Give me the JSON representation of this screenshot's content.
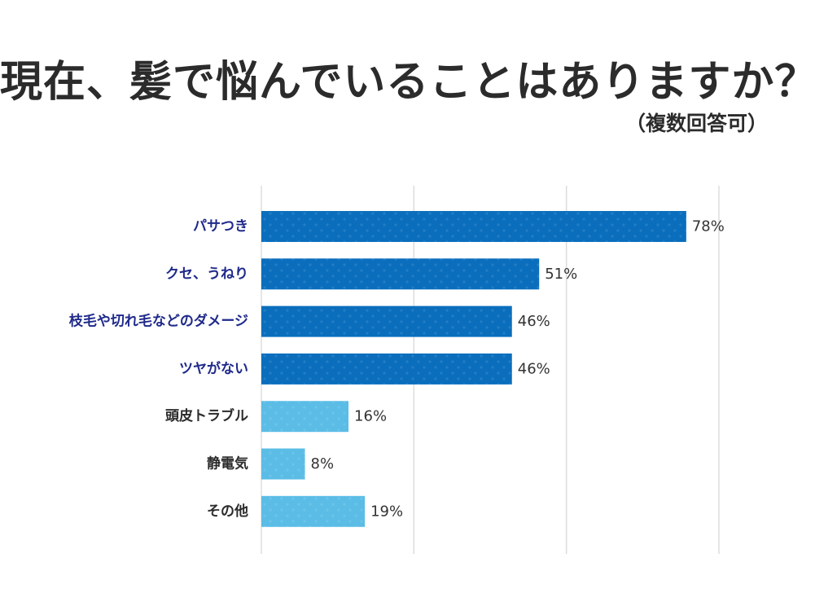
{
  "title": "現在、髪で悩んでいることはありますか？",
  "subtitle": "（複数回答可）",
  "chart_data": {
    "type": "bar",
    "orientation": "horizontal",
    "title": "現在、髪で悩んでいることはありますか？",
    "subtitle": "（複数回答可）",
    "xlabel": "",
    "ylabel": "",
    "xlim": [
      0,
      84
    ],
    "grid": true,
    "grid_values": [
      0,
      28,
      56,
      84
    ],
    "categories": [
      "パサつき",
      "クセ、うねり",
      "枝毛や切れ毛などのダメージ",
      "ツヤがない",
      "頭皮トラブル",
      "静電気",
      "その他"
    ],
    "values": [
      78,
      51,
      46,
      46,
      16,
      8,
      19
    ],
    "value_labels": [
      "78%",
      "51%",
      "46%",
      "46%",
      "16%",
      "8%",
      "19%"
    ],
    "highlight": [
      true,
      true,
      true,
      true,
      false,
      false,
      false
    ],
    "colors": {
      "highlight_bar": "#0a6ebd",
      "normal_bar": "#5bbde6",
      "highlight_label": "#1f2a8a",
      "normal_label": "#2b2b2b",
      "grid": "#dddddd"
    }
  }
}
